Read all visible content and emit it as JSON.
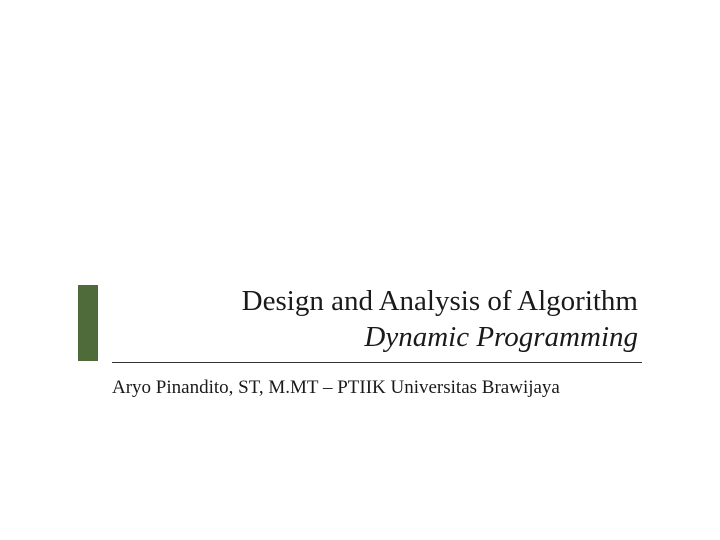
{
  "slide": {
    "title": "Design and Analysis of Algorithm",
    "subtitle": "Dynamic Programming",
    "author": "Aryo Pinandito, ST, M.MT – PTIIK Universitas Brawijaya",
    "accent_color": "#4f6b3a",
    "background_color": "#ffffff",
    "text_color": "#1a1a1a",
    "rule_color": "#333333",
    "title_fontsize": 29,
    "subtitle_fontsize": 29,
    "author_fontsize": 19,
    "subtitle_italic": true,
    "font_family": "Georgia, Times New Roman, serif"
  }
}
